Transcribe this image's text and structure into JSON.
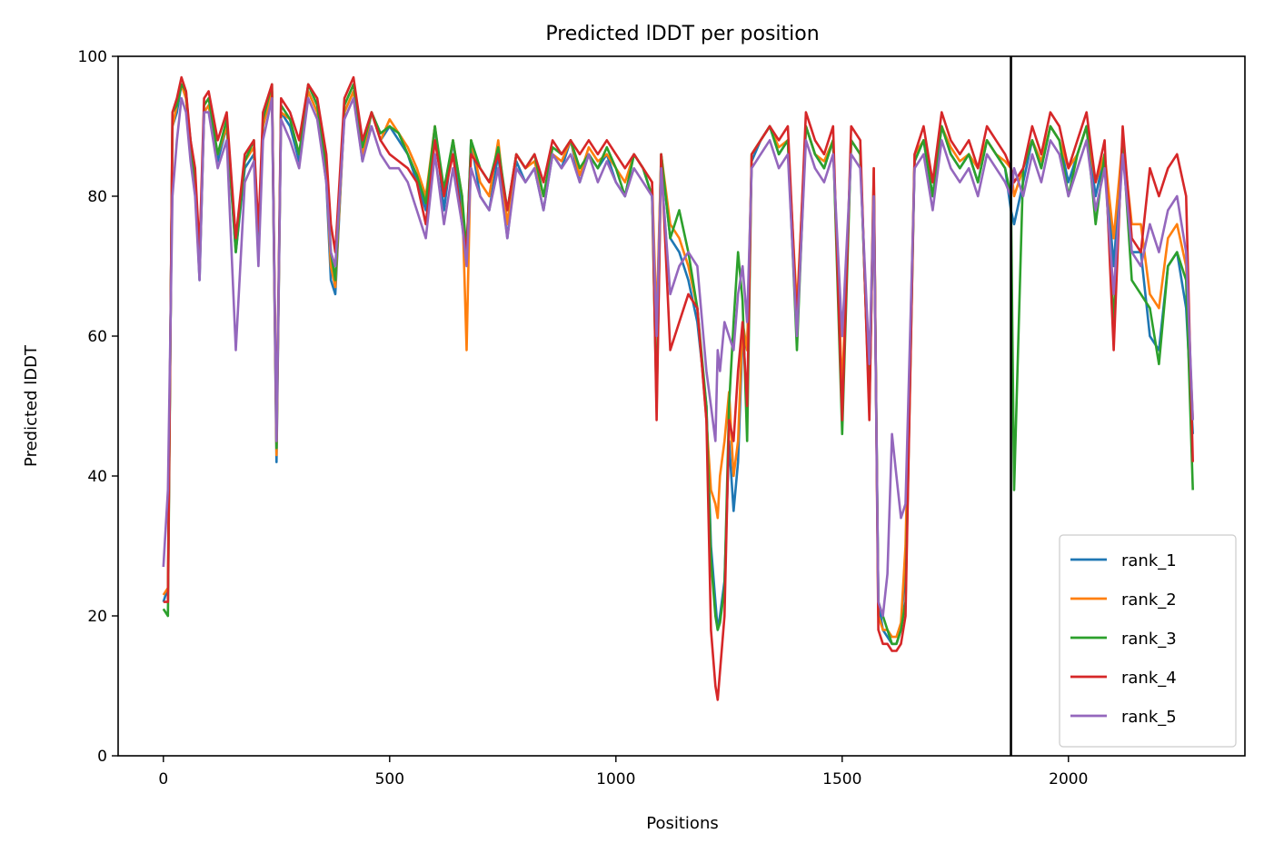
{
  "chart_data": {
    "type": "line",
    "title": "Predicted lDDT per position",
    "xlabel": "Positions",
    "ylabel": "Predicted lDDT",
    "xlim": [
      -100,
      2390
    ],
    "ylim": [
      0,
      100
    ],
    "xticks": [
      0,
      500,
      1000,
      1500,
      2000
    ],
    "yticks": [
      0,
      20,
      40,
      60,
      80,
      100
    ],
    "grid": false,
    "legend_position": "lower-right",
    "vertical_line": {
      "x": 1873,
      "color": "#000000"
    },
    "x": [
      0,
      10,
      20,
      30,
      40,
      50,
      60,
      70,
      80,
      90,
      100,
      120,
      140,
      160,
      180,
      200,
      210,
      220,
      240,
      250,
      260,
      280,
      300,
      320,
      340,
      360,
      370,
      380,
      400,
      420,
      440,
      460,
      480,
      500,
      520,
      540,
      560,
      580,
      600,
      620,
      640,
      660,
      670,
      680,
      700,
      720,
      740,
      760,
      780,
      800,
      820,
      840,
      860,
      880,
      900,
      920,
      940,
      960,
      980,
      1000,
      1020,
      1040,
      1060,
      1080,
      1090,
      1100,
      1120,
      1140,
      1160,
      1180,
      1200,
      1210,
      1220,
      1225,
      1230,
      1240,
      1250,
      1260,
      1270,
      1280,
      1290,
      1300,
      1320,
      1340,
      1360,
      1380,
      1400,
      1420,
      1440,
      1460,
      1480,
      1500,
      1520,
      1540,
      1560,
      1570,
      1580,
      1590,
      1600,
      1610,
      1620,
      1630,
      1640,
      1660,
      1680,
      1700,
      1720,
      1740,
      1760,
      1780,
      1800,
      1820,
      1840,
      1860,
      1873,
      1880,
      1900,
      1920,
      1940,
      1960,
      1980,
      2000,
      2020,
      2040,
      2060,
      2080,
      2100,
      2120,
      2140,
      2160,
      2180,
      2200,
      2220,
      2240,
      2260,
      2275
    ],
    "series": [
      {
        "name": "rank_1",
        "color": "#1f77b4",
        "values": [
          22,
          24,
          90,
          92,
          96,
          94,
          88,
          82,
          68,
          92,
          93,
          85,
          90,
          72,
          84,
          86,
          72,
          90,
          95,
          42,
          92,
          90,
          85,
          95,
          92,
          82,
          68,
          66,
          92,
          95,
          85,
          92,
          88,
          90,
          88,
          86,
          82,
          78,
          90,
          78,
          88,
          78,
          72,
          88,
          80,
          78,
          86,
          74,
          85,
          82,
          84,
          78,
          86,
          84,
          88,
          82,
          86,
          84,
          86,
          82,
          80,
          86,
          84,
          80,
          60,
          86,
          74,
          72,
          68,
          62,
          50,
          30,
          22,
          18,
          20,
          25,
          45,
          35,
          42,
          60,
          58,
          85,
          88,
          90,
          86,
          88,
          62,
          90,
          86,
          84,
          88,
          50,
          88,
          86,
          50,
          82,
          22,
          18,
          17,
          16,
          16,
          18,
          28,
          85,
          88,
          80,
          90,
          86,
          84,
          86,
          82,
          88,
          86,
          84,
          78,
          76,
          82,
          88,
          84,
          90,
          88,
          82,
          86,
          90,
          80,
          86,
          70,
          88,
          72,
          72,
          60,
          58,
          70,
          72,
          64,
          46
        ]
      },
      {
        "name": "rank_2",
        "color": "#ff7f0e",
        "values": [
          23,
          24,
          90,
          93,
          96,
          94,
          87,
          82,
          69,
          92,
          93,
          86,
          90,
          73,
          85,
          87,
          73,
          90,
          95,
          43,
          92,
          91,
          86,
          95,
          92,
          83,
          70,
          67,
          92,
          95,
          86,
          92,
          88,
          91,
          89,
          87,
          84,
          80,
          90,
          80,
          88,
          80,
          58,
          88,
          82,
          80,
          88,
          76,
          86,
          84,
          85,
          80,
          86,
          85,
          88,
          83,
          87,
          85,
          86,
          84,
          82,
          86,
          84,
          82,
          62,
          86,
          76,
          74,
          70,
          64,
          48,
          38,
          36,
          34,
          40,
          45,
          52,
          40,
          45,
          62,
          58,
          86,
          88,
          90,
          87,
          88,
          64,
          90,
          86,
          85,
          88,
          52,
          88,
          86,
          52,
          84,
          20,
          18,
          18,
          17,
          17,
          19,
          30,
          86,
          88,
          82,
          90,
          87,
          85,
          86,
          84,
          88,
          86,
          85,
          84,
          80,
          84,
          88,
          85,
          90,
          88,
          84,
          86,
          90,
          82,
          86,
          74,
          88,
          76,
          76,
          66,
          64,
          74,
          76,
          70,
          48
        ]
      },
      {
        "name": "rank_3",
        "color": "#2ca02c",
        "values": [
          21,
          20,
          92,
          93,
          96,
          95,
          87,
          82,
          69,
          93,
          94,
          86,
          91,
          72,
          85,
          88,
          73,
          91,
          96,
          44,
          93,
          91,
          86,
          96,
          93,
          84,
          72,
          68,
          93,
          96,
          87,
          92,
          89,
          90,
          89,
          86,
          83,
          79,
          90,
          81,
          88,
          80,
          72,
          88,
          84,
          82,
          87,
          78,
          86,
          84,
          86,
          80,
          87,
          86,
          88,
          84,
          86,
          84,
          87,
          84,
          80,
          86,
          84,
          80,
          50,
          86,
          74,
          78,
          72,
          64,
          50,
          28,
          20,
          18,
          19,
          24,
          50,
          62,
          72,
          65,
          45,
          86,
          88,
          90,
          86,
          88,
          58,
          90,
          86,
          84,
          88,
          46,
          88,
          86,
          50,
          82,
          22,
          20,
          18,
          16,
          16,
          18,
          22,
          85,
          88,
          80,
          90,
          86,
          84,
          86,
          82,
          88,
          86,
          84,
          80,
          38,
          84,
          88,
          84,
          90,
          88,
          80,
          86,
          90,
          76,
          86,
          62,
          88,
          68,
          66,
          64,
          56,
          70,
          72,
          68,
          38
        ]
      },
      {
        "name": "rank_4",
        "color": "#d62728",
        "values": [
          22,
          22,
          92,
          94,
          97,
          95,
          88,
          84,
          72,
          94,
          95,
          88,
          92,
          74,
          86,
          88,
          75,
          92,
          96,
          45,
          94,
          92,
          88,
          96,
          94,
          86,
          76,
          72,
          94,
          97,
          88,
          92,
          88,
          86,
          85,
          84,
          82,
          76,
          88,
          80,
          86,
          76,
          72,
          86,
          84,
          82,
          86,
          78,
          86,
          84,
          86,
          82,
          88,
          86,
          88,
          86,
          88,
          86,
          88,
          86,
          84,
          86,
          84,
          82,
          48,
          86,
          58,
          62,
          66,
          64,
          48,
          18,
          10,
          8,
          12,
          20,
          48,
          45,
          55,
          62,
          50,
          86,
          88,
          90,
          88,
          90,
          62,
          92,
          88,
          86,
          90,
          48,
          90,
          88,
          48,
          84,
          18,
          16,
          16,
          15,
          15,
          16,
          20,
          86,
          90,
          82,
          92,
          88,
          86,
          88,
          84,
          90,
          88,
          86,
          84,
          82,
          84,
          90,
          86,
          92,
          90,
          84,
          88,
          92,
          82,
          88,
          58,
          90,
          74,
          72,
          84,
          80,
          84,
          86,
          80,
          42
        ]
      },
      {
        "name": "rank_5",
        "color": "#9467bd",
        "values": [
          27,
          38,
          80,
          88,
          94,
          92,
          85,
          80,
          68,
          92,
          92,
          84,
          88,
          58,
          82,
          85,
          70,
          88,
          94,
          45,
          91,
          88,
          84,
          94,
          91,
          82,
          72,
          70,
          91,
          94,
          85,
          90,
          86,
          84,
          84,
          82,
          78,
          74,
          86,
          76,
          84,
          76,
          70,
          84,
          80,
          78,
          84,
          74,
          84,
          82,
          84,
          78,
          86,
          84,
          86,
          82,
          86,
          82,
          85,
          82,
          80,
          84,
          82,
          80,
          60,
          84,
          66,
          70,
          72,
          70,
          55,
          50,
          45,
          58,
          55,
          62,
          60,
          58,
          66,
          70,
          62,
          84,
          86,
          88,
          84,
          86,
          60,
          88,
          84,
          82,
          86,
          60,
          86,
          84,
          56,
          80,
          22,
          20,
          26,
          46,
          40,
          34,
          36,
          84,
          86,
          78,
          88,
          84,
          82,
          84,
          80,
          86,
          84,
          82,
          80,
          84,
          80,
          86,
          82,
          88,
          86,
          80,
          84,
          88,
          78,
          84,
          66,
          86,
          72,
          70,
          76,
          72,
          78,
          80,
          72,
          48
        ]
      }
    ]
  }
}
